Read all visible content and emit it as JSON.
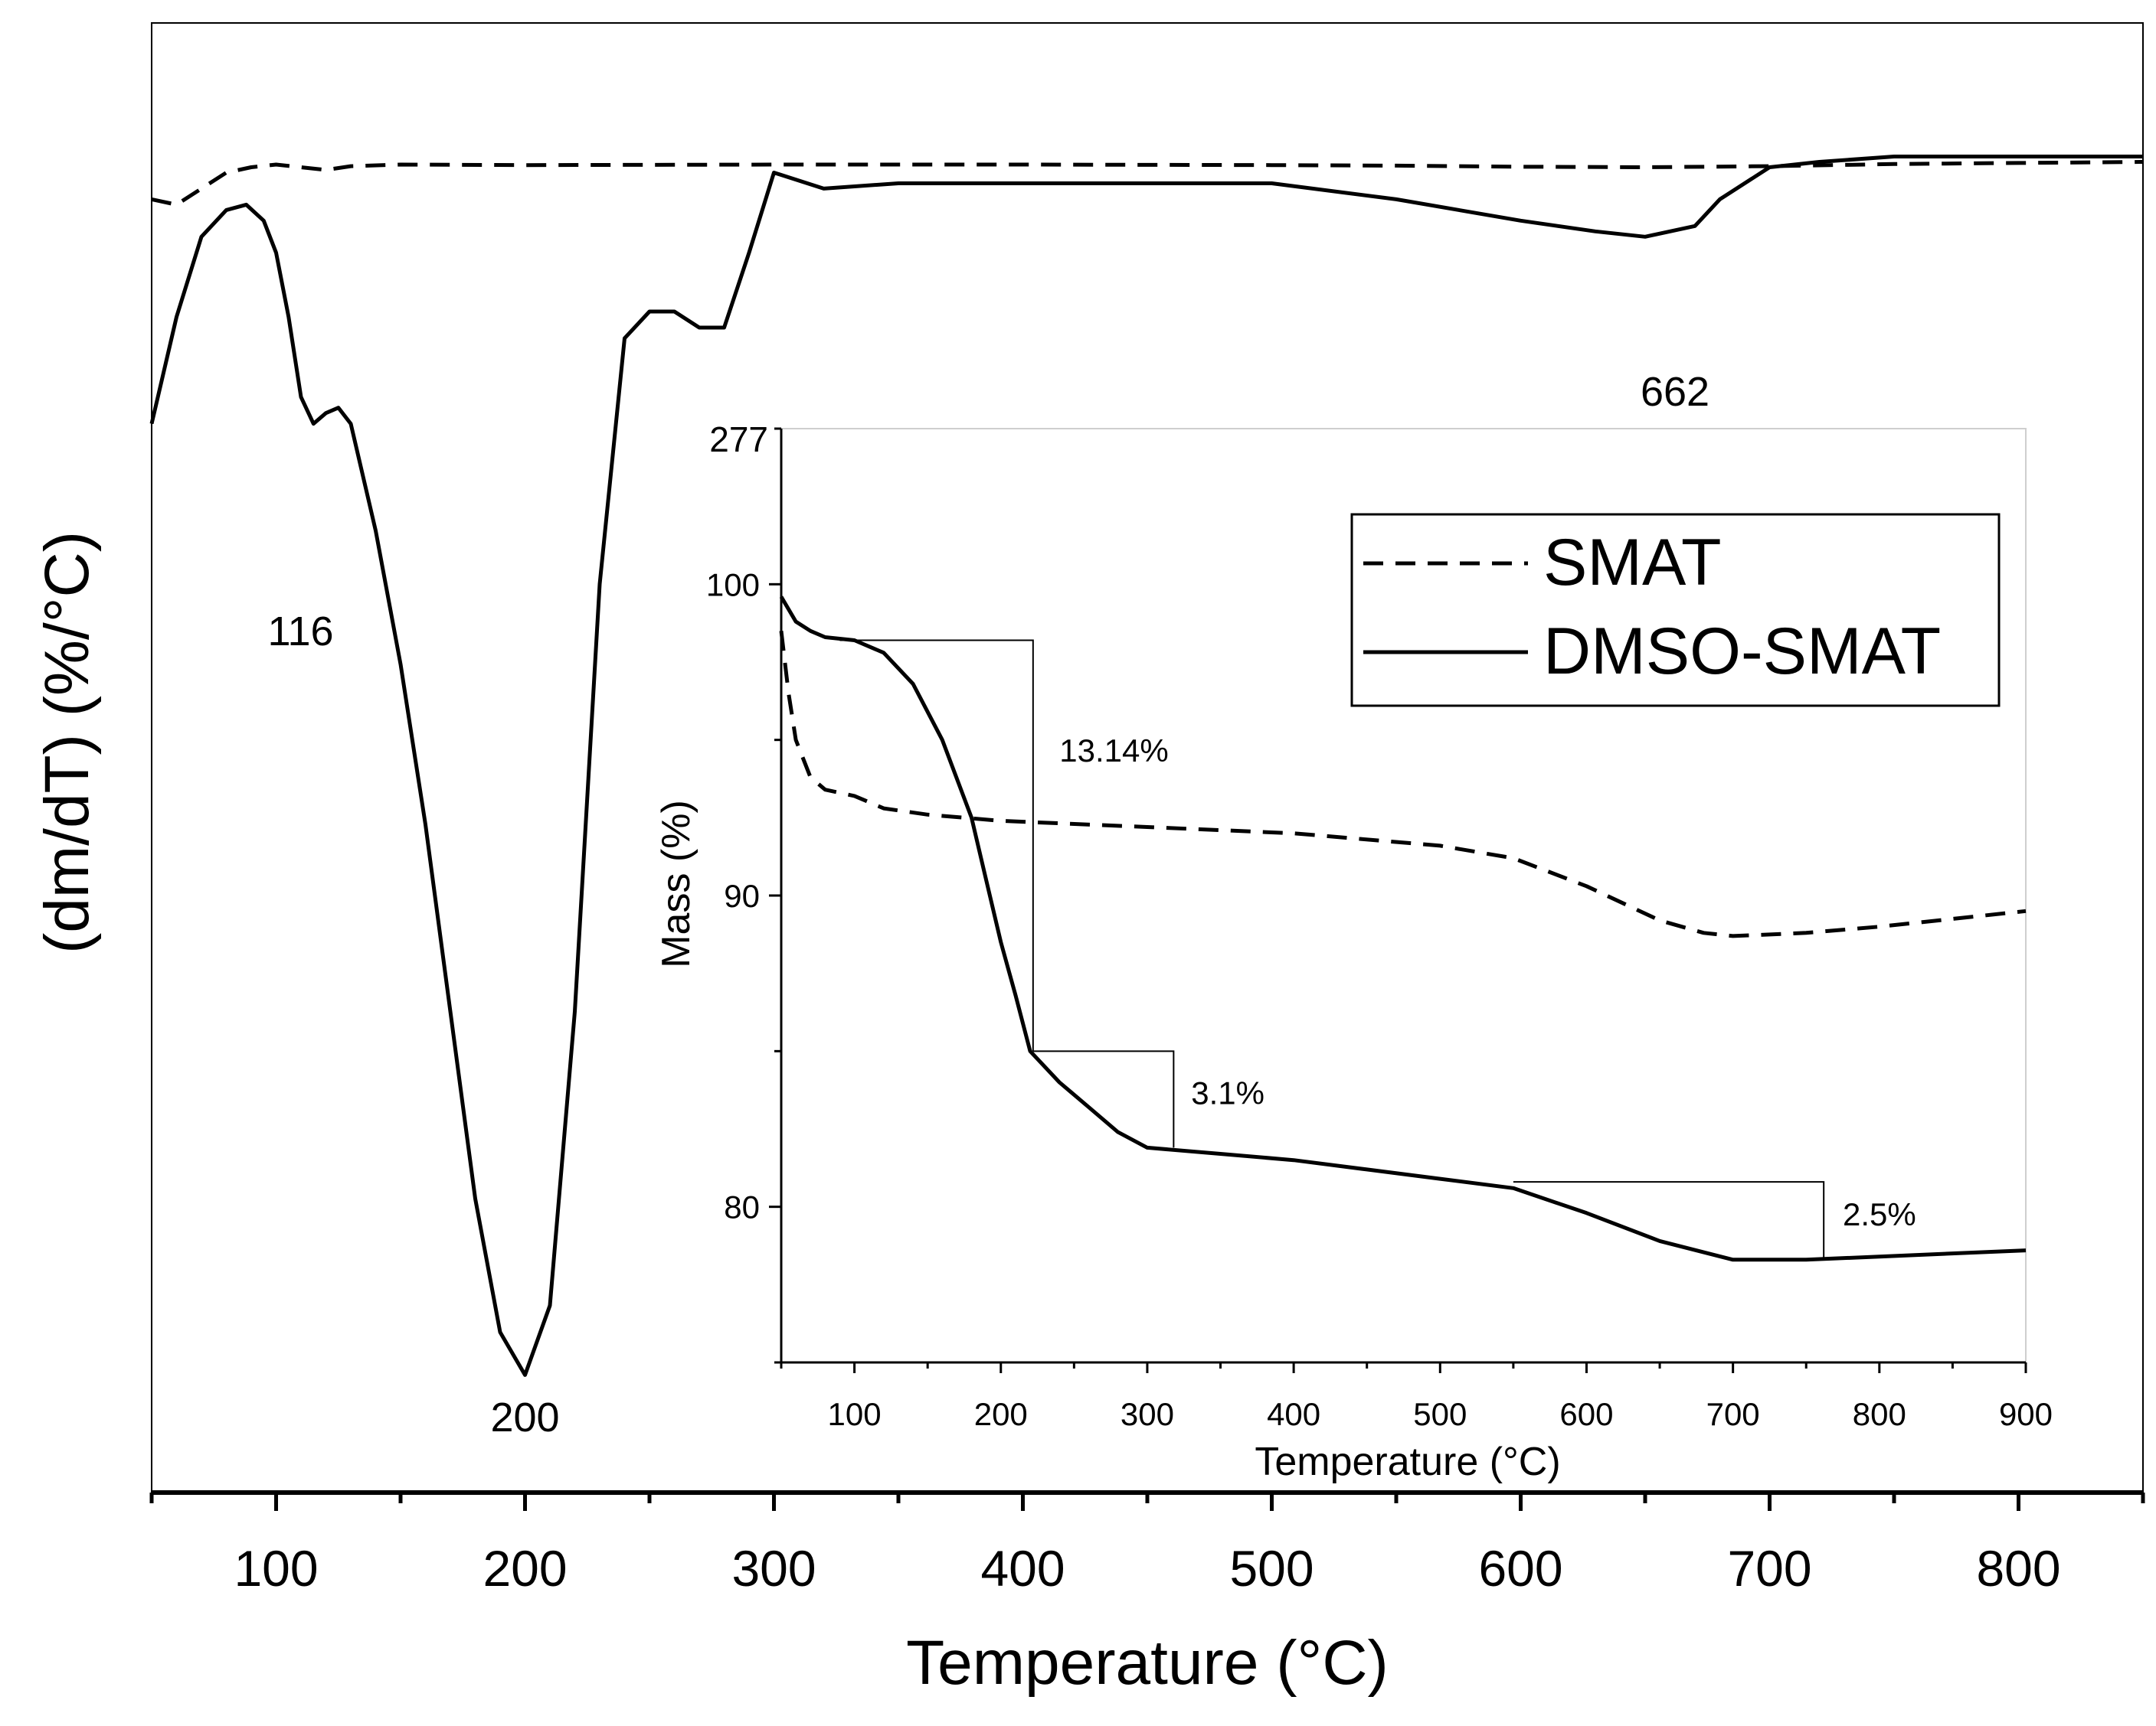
{
  "chart_data": [
    {
      "id": "main",
      "type": "line",
      "title": "",
      "xlabel": "Temperature (°C)",
      "ylabel": "(dm/dT) (%/°C)",
      "xlim": [
        50,
        850
      ],
      "xticks": [
        100,
        200,
        300,
        400,
        500,
        600,
        700,
        800
      ],
      "xtick_labels": [
        "100",
        "200",
        "300",
        "400",
        "500",
        "600",
        "700",
        "800"
      ],
      "y_tick_labels_shown": false,
      "grid": false,
      "annotations": [
        {
          "text": "116",
          "x": 116
        },
        {
          "text": "200",
          "x": 200
        },
        {
          "text": "662",
          "x": 662
        }
      ],
      "series": [
        {
          "name": "SMAT",
          "style": "dashed",
          "x": [
            50,
            60,
            70,
            80,
            90,
            100,
            110,
            120,
            130,
            150,
            200,
            300,
            400,
            500,
            550,
            600,
            650,
            700,
            750,
            800,
            850
          ],
          "y": [
            -0.08,
            -0.09,
            -0.06,
            -0.03,
            -0.02,
            -0.015,
            -0.02,
            -0.025,
            -0.018,
            -0.015,
            -0.016,
            -0.015,
            -0.015,
            -0.016,
            -0.017,
            -0.019,
            -0.02,
            -0.018,
            -0.014,
            -0.012,
            -0.01
          ]
        },
        {
          "name": "DMSO-SMAT",
          "style": "solid",
          "x": [
            50,
            60,
            70,
            80,
            88,
            95,
            100,
            105,
            110,
            115,
            120,
            125,
            130,
            140,
            150,
            160,
            170,
            180,
            190,
            200,
            210,
            220,
            230,
            240,
            250,
            260,
            270,
            280,
            290,
            300,
            320,
            350,
            400,
            450,
            500,
            550,
            600,
            630,
            650,
            670,
            680,
            700,
            720,
            750,
            800,
            850
          ],
          "y": [
            -0.5,
            -0.3,
            -0.15,
            -0.1,
            -0.09,
            -0.12,
            -0.18,
            -0.3,
            -0.45,
            -0.5,
            -0.48,
            -0.47,
            -0.5,
            -0.7,
            -0.95,
            -1.25,
            -1.6,
            -1.95,
            -2.2,
            -2.28,
            -2.15,
            -1.6,
            -0.8,
            -0.34,
            -0.29,
            -0.29,
            -0.32,
            -0.32,
            -0.18,
            -0.03,
            -0.06,
            -0.05,
            -0.05,
            -0.05,
            -0.05,
            -0.08,
            -0.12,
            -0.14,
            -0.15,
            -0.13,
            -0.08,
            -0.02,
            -0.01,
            0.0,
            0.0,
            0.0
          ]
        }
      ],
      "ylim": [
        -2.5,
        0.25
      ]
    },
    {
      "id": "inset",
      "type": "line",
      "title": "",
      "xlabel": "Temperature (°C)",
      "ylabel": "Mass (%)",
      "xlim": [
        50,
        900
      ],
      "ylim": [
        75,
        105
      ],
      "xticks": [
        100,
        200,
        300,
        400,
        500,
        600,
        700,
        800,
        900
      ],
      "xtick_labels": [
        "100",
        "200",
        "300",
        "400",
        "500",
        "600",
        "700",
        "800",
        "900"
      ],
      "yticks": [
        80,
        90,
        100
      ],
      "ytick_labels": [
        "80",
        "90",
        "100"
      ],
      "ytop_label": "277",
      "grid": false,
      "legend": {
        "placement": "top-right",
        "entries": [
          "SMAT",
          "DMSO-SMAT"
        ]
      },
      "series": [
        {
          "name": "SMAT",
          "style": "dashed",
          "x": [
            50,
            55,
            60,
            70,
            80,
            100,
            120,
            150,
            200,
            300,
            400,
            500,
            550,
            600,
            650,
            680,
            700,
            750,
            800,
            900
          ],
          "y": [
            98.5,
            96.5,
            95,
            93.8,
            93.4,
            93.2,
            92.8,
            92.6,
            92.4,
            92.2,
            92,
            91.6,
            91.2,
            90.3,
            89.2,
            88.8,
            88.7,
            88.8,
            89.0,
            89.5
          ]
        },
        {
          "name": "DMSO-SMAT",
          "style": "solid",
          "x": [
            50,
            60,
            70,
            80,
            100,
            120,
            140,
            160,
            180,
            190,
            200,
            210,
            220,
            240,
            260,
            280,
            300,
            350,
            400,
            450,
            500,
            550,
            600,
            650,
            700,
            750,
            800,
            900
          ],
          "y": [
            99.6,
            98.8,
            98.5,
            98.3,
            98.2,
            97.8,
            96.8,
            95.0,
            92.5,
            90.5,
            88.5,
            86.8,
            85.0,
            84.0,
            83.2,
            82.4,
            81.9,
            81.7,
            81.5,
            81.2,
            80.9,
            80.6,
            79.8,
            78.9,
            78.3,
            78.3,
            78.4,
            78.6
          ]
        }
      ],
      "annotations": [
        {
          "text": "13.14%",
          "x": 240,
          "y": 94.3
        },
        {
          "text": "3.1%",
          "x": 330,
          "y": 83.3
        },
        {
          "text": "2.5%",
          "x": 775,
          "y": 79.4
        }
      ],
      "steps": [
        {
          "x_start": 90,
          "x_end": 222,
          "y_top": 98.2,
          "y_bottom": 85.0
        },
        {
          "x_start": 222,
          "x_end": 318,
          "y_top": 85.0,
          "y_bottom": 81.9
        },
        {
          "x_start": 550,
          "x_end": 762,
          "y_top": 80.8,
          "y_bottom": 78.3
        }
      ]
    }
  ]
}
